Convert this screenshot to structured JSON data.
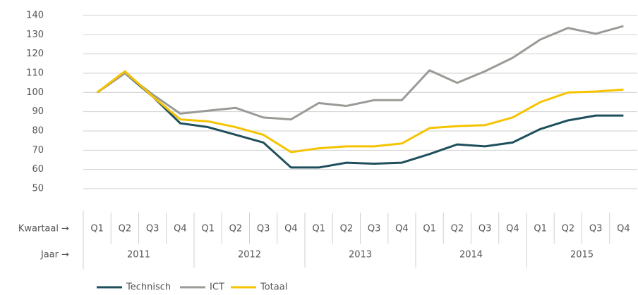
{
  "chart_data": {
    "type": "line",
    "categories": [
      "Q1",
      "Q2",
      "Q3",
      "Q4",
      "Q1",
      "Q2",
      "Q3",
      "Q4",
      "Q1",
      "Q2",
      "Q3",
      "Q4",
      "Q1",
      "Q2",
      "Q3",
      "Q4",
      "Q1",
      "Q2",
      "Q3",
      "Q4"
    ],
    "years": [
      "2011",
      "2012",
      "2013",
      "2014",
      "2015"
    ],
    "category_row_label": "Kwartaal →",
    "year_row_label": "Jaar →",
    "series": [
      {
        "name": "Technisch",
        "color": "#1f4f5c",
        "values": [
          100,
          110,
          98,
          84,
          82,
          78,
          74,
          61,
          61,
          63.5,
          63,
          63.5,
          68,
          73,
          72,
          74,
          81,
          85.5,
          88,
          88
        ]
      },
      {
        "name": "ICT",
        "color": "#9a9a96",
        "values": [
          100,
          110,
          99,
          89,
          90.5,
          92,
          87,
          86,
          94.5,
          93,
          96,
          96,
          111.5,
          105,
          111,
          118,
          127.5,
          133.5,
          130.5,
          134.5
        ]
      },
      {
        "name": "Totaal",
        "color": "#f6c300",
        "values": [
          100,
          111,
          98,
          86,
          85,
          82,
          78,
          69,
          71,
          72,
          72,
          73.5,
          81.5,
          82.5,
          83,
          87,
          95,
          100,
          100.5,
          101.5
        ]
      }
    ],
    "ylim": [
      50,
      140
    ],
    "yticks": [
      50,
      60,
      70,
      80,
      90,
      100,
      110,
      120,
      130,
      140
    ],
    "grid": true
  }
}
